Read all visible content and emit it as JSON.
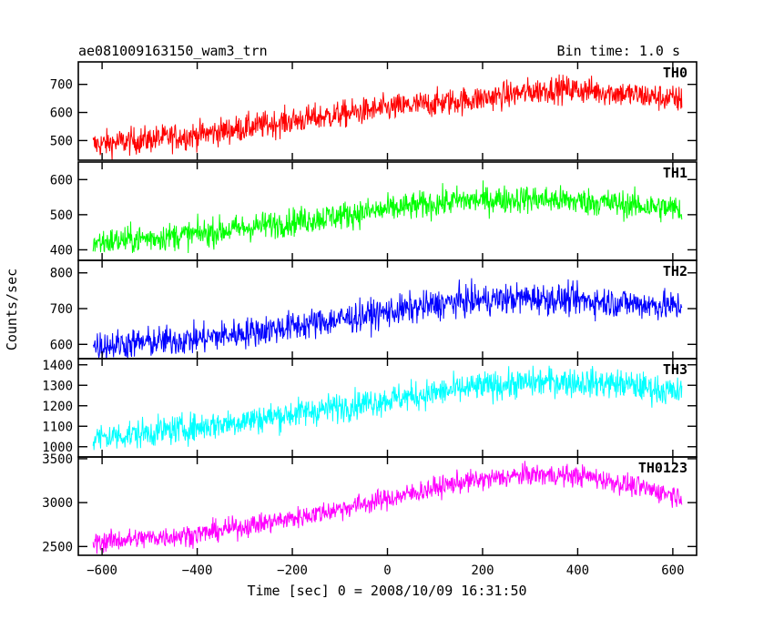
{
  "chart_data": {
    "type": "line",
    "title": "ae081009163150_wam3_trn",
    "subtitle": "Bin time: 1.0 s",
    "xlabel": "Time [sec] 0 = 2008/10/09 16:31:50",
    "ylabel": "Counts/sec",
    "xlim": [
      -650,
      650
    ],
    "x_ticks": [
      -600,
      -400,
      -200,
      0,
      200,
      400,
      600
    ],
    "x_data_range": [
      -619,
      619
    ],
    "bin_time": 1.0,
    "panels": [
      {
        "name": "TH0",
        "color": "#ff0000",
        "ylim": [
          430,
          780
        ],
        "y_ticks": [
          500,
          600,
          700
        ],
        "trend": {
          "x": [
            -619,
            -400,
            -200,
            0,
            200,
            350,
            450,
            619
          ],
          "y": [
            485,
            520,
            570,
            615,
            650,
            685,
            675,
            645
          ]
        },
        "noise_amplitude": 34
      },
      {
        "name": "TH1",
        "color": "#00ff00",
        "ylim": [
          370,
          650
        ],
        "y_ticks": [
          400,
          500,
          600
        ],
        "trend": {
          "x": [
            -619,
            -400,
            -200,
            0,
            150,
            300,
            450,
            619
          ],
          "y": [
            420,
            445,
            480,
            515,
            540,
            545,
            535,
            515
          ]
        },
        "noise_amplitude": 28
      },
      {
        "name": "TH2",
        "color": "#0000ff",
        "ylim": [
          560,
          835
        ],
        "y_ticks": [
          600,
          700,
          800
        ],
        "trend": {
          "x": [
            -619,
            -400,
            -200,
            0,
            150,
            300,
            450,
            619
          ],
          "y": [
            595,
            615,
            650,
            690,
            720,
            730,
            720,
            705
          ]
        },
        "noise_amplitude": 30
      },
      {
        "name": "TH3",
        "color": "#00ffff",
        "ylim": [
          950,
          1430
        ],
        "y_ticks": [
          1000,
          1100,
          1200,
          1300,
          1400
        ],
        "trend": {
          "x": [
            -619,
            -400,
            -200,
            0,
            200,
            350,
            500,
            619
          ],
          "y": [
            1040,
            1095,
            1160,
            1230,
            1295,
            1320,
            1305,
            1260
          ]
        },
        "noise_amplitude": 50
      },
      {
        "name": "TH0123",
        "color": "#ff00ff",
        "ylim": [
          2400,
          3520
        ],
        "y_ticks": [
          2500,
          3000,
          3500
        ],
        "trend": {
          "x": [
            -619,
            -400,
            -200,
            0,
            150,
            300,
            420,
            619
          ],
          "y": [
            2550,
            2640,
            2820,
            3040,
            3230,
            3320,
            3300,
            3070
          ]
        },
        "noise_amplitude": 85
      }
    ]
  }
}
